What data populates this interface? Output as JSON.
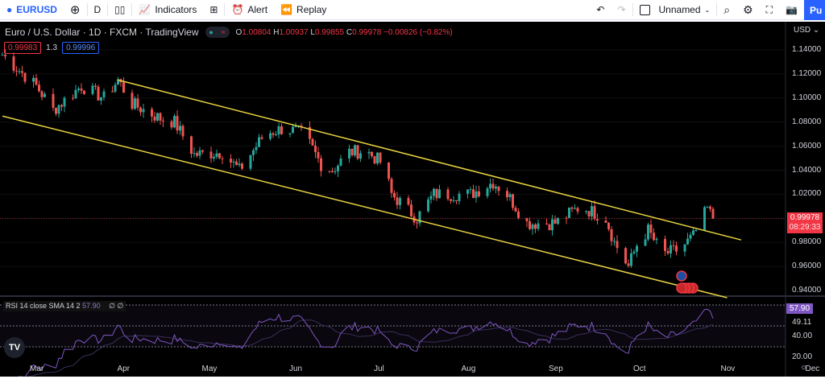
{
  "toolbar": {
    "symbol": "EURUSD",
    "interval": "D",
    "indicators": "Indicators",
    "alert": "Alert",
    "replay": "Replay",
    "layout_name": "Unnamed",
    "publish": "Pu"
  },
  "legend": {
    "title": "Euro / U.S. Dollar · 1D · FXCM · TradingView",
    "o_label": "O",
    "o": "1.00804",
    "h_label": "H",
    "h": "1.00937",
    "l_label": "L",
    "l": "0.99855",
    "c_label": "C",
    "c": "0.99978",
    "change": "−0.00826 (−0.82%)",
    "sell": "0.99983",
    "spread": "1.3",
    "buy": "0.99996"
  },
  "price_axis": {
    "currency": "USD",
    "ticks": [
      "1.14000",
      "1.12000",
      "1.10000",
      "1.08000",
      "1.06000",
      "1.04000",
      "1.02000",
      "0.98000",
      "0.96000",
      "0.94000"
    ],
    "last_price": "0.99978",
    "countdown": "08:29:33"
  },
  "rsi": {
    "legend": "RSI 14 close SMA 14 2",
    "value": "57.90",
    "icons": "∅ ∅",
    "axis": [
      "57.90",
      "49.11",
      "40.00",
      "20.00"
    ],
    "levels": [
      70,
      50,
      30
    ]
  },
  "time_axis": [
    "Mar",
    "Apr",
    "May",
    "Jun",
    "Jul",
    "Aug",
    "Sep",
    "Oct",
    "Nov",
    "Dec"
  ],
  "colors": {
    "up": "#26a69a",
    "down": "#ef5350",
    "channel": "#e8d33f",
    "rsi": "#7e57c2"
  },
  "chart_data": {
    "type": "candlestick",
    "price_path": [
      [
        "2022-02-17",
        1.136
      ],
      [
        "2022-03-01",
        1.11
      ],
      [
        "2022-03-07",
        1.09
      ],
      [
        "2022-03-17",
        1.11
      ],
      [
        "2022-03-25",
        1.1
      ],
      [
        "2022-03-30",
        1.115
      ],
      [
        "2022-04-04",
        1.095
      ],
      [
        "2022-04-14",
        1.083
      ],
      [
        "2022-04-19",
        1.08
      ],
      [
        "2022-04-26",
        1.053
      ],
      [
        "2022-05-06",
        1.055
      ],
      [
        "2022-05-12",
        1.04
      ],
      [
        "2022-05-21",
        1.07
      ],
      [
        "2022-05-28",
        1.075
      ],
      [
        "2022-06-04",
        1.07
      ],
      [
        "2022-06-10",
        1.045
      ],
      [
        "2022-06-14",
        1.04
      ],
      [
        "2022-06-20",
        1.055
      ],
      [
        "2022-06-26",
        1.056
      ],
      [
        "2022-07-02",
        1.045
      ],
      [
        "2022-07-05",
        1.02
      ],
      [
        "2022-07-14",
        1.0
      ],
      [
        "2022-07-20",
        1.02
      ],
      [
        "2022-08-02",
        1.02
      ],
      [
        "2022-08-10",
        1.03
      ],
      [
        "2022-08-15",
        1.02
      ],
      [
        "2022-08-22",
        0.996
      ],
      [
        "2022-09-01",
        0.996
      ],
      [
        "2022-09-10",
        1.01
      ],
      [
        "2022-09-19",
        1.0
      ],
      [
        "2022-09-22",
        0.98
      ],
      [
        "2022-09-27",
        0.96
      ],
      [
        "2022-09-30",
        0.978
      ],
      [
        "2022-10-04",
        0.99
      ],
      [
        "2022-10-09",
        0.97
      ],
      [
        "2022-10-15",
        0.974
      ],
      [
        "2022-10-20",
        0.985
      ],
      [
        "2022-10-25",
        1.008
      ],
      [
        "2022-10-27",
        0.9998
      ]
    ],
    "channel": {
      "upper": [
        [
          "2022-03-30",
          1.115
        ],
        [
          "2022-11-06",
          0.982
        ]
      ],
      "lower": [
        [
          "2022-02-17",
          1.085
        ],
        [
          "2022-11-01",
          0.934
        ]
      ]
    }
  }
}
